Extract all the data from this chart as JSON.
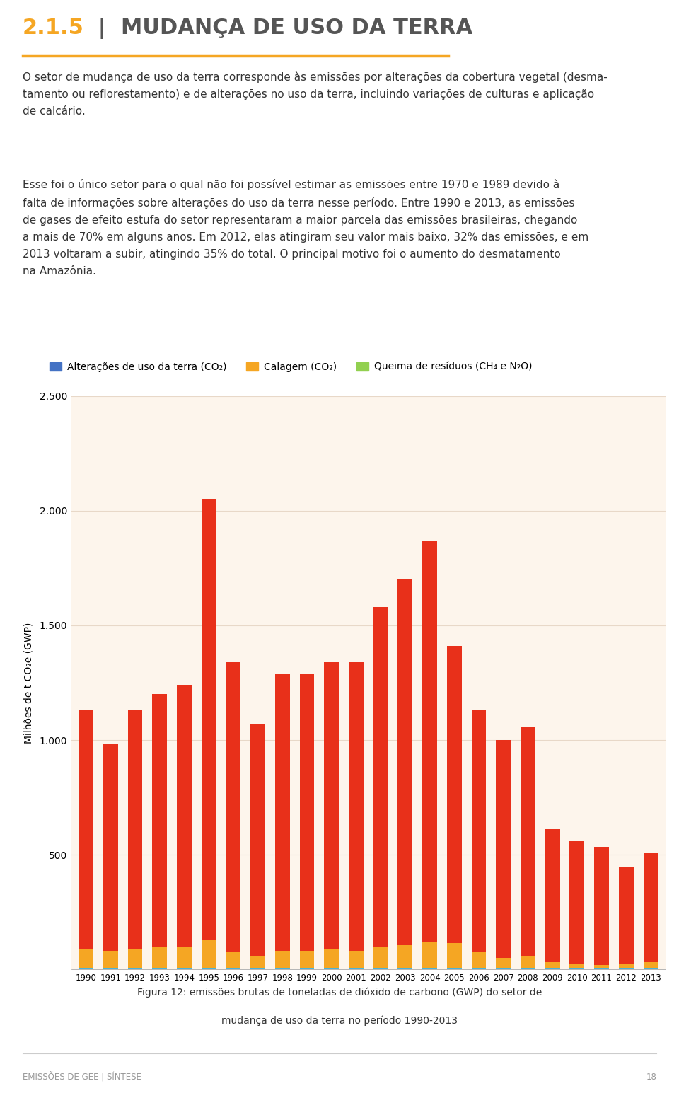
{
  "years": [
    1990,
    1991,
    1992,
    1993,
    1994,
    1995,
    1996,
    1997,
    1998,
    1999,
    2000,
    2001,
    2002,
    2003,
    2004,
    2005,
    2006,
    2007,
    2008,
    2009,
    2010,
    2011,
    2012,
    2013
  ],
  "land_use": [
    1130,
    980,
    1130,
    1200,
    1240,
    2050,
    1340,
    1070,
    1290,
    1290,
    1340,
    1340,
    1580,
    1700,
    1870,
    1410,
    1130,
    1000,
    1060,
    610,
    560,
    535,
    445,
    510
  ],
  "calagem": [
    85,
    80,
    90,
    95,
    100,
    130,
    75,
    60,
    80,
    80,
    90,
    80,
    95,
    105,
    120,
    115,
    75,
    50,
    60,
    30,
    25,
    20,
    25,
    30
  ],
  "queima": [
    5,
    5,
    5,
    5,
    5,
    5,
    5,
    5,
    5,
    5,
    5,
    5,
    5,
    5,
    5,
    5,
    5,
    5,
    5,
    5,
    5,
    5,
    5,
    5
  ],
  "land_use_color": "#e8301a",
  "calagem_color": "#f5a623",
  "queima_color": "#4ab3d8",
  "chart_bg_color": "#fdf5ec",
  "grid_color": "#e8d8c8",
  "title_number": "2.1.5",
  "title_rest": " |  MUDANÇA DE USO DA TERRA",
  "title_color": "#f5a623",
  "title_rest_color": "#555555",
  "header_line_color": "#f5a623",
  "ylabel": "Milhões de t CO₂e (GWP)",
  "ylim": [
    0,
    2500
  ],
  "yticks": [
    0,
    500,
    1000,
    1500,
    2000,
    2500
  ],
  "legend_label_1": "Alterações de uso da terra (CO₂)",
  "legend_label_2": "Calagem (CO₂)",
  "legend_label_3": "Queima de resíduos (CH₄ e N₂O)",
  "legend_color_1": "#4472c4",
  "legend_color_2": "#f5a623",
  "legend_color_3": "#92d050",
  "stripe_color": "#f5a623",
  "caption_line1": "Figura 12: emissões brutas de toneladas de dióxido de carbono (GWP) do setor de",
  "caption_line2": "mudança de uso da terra no período 1990-2013",
  "footer_text": "EMISSÕES DE GEE | SÍNTESE",
  "page_number": "18",
  "body1_line1": "O setor de mudança de uso da terra corresponde às emissões por alterações da cobertura vegetal (desma-",
  "body1_line2": "tamento ou reflorestamento) e de alterações no uso da terra, incluindo variações de culturas e aplicação",
  "body1_line3": "de calcário.",
  "body2_line1": "Esse foi o único setor para o qual não foi possível estimar as emissões entre 1970 e 1989 devido à",
  "body2_line2": "falta de informações sobre alterações do uso da terra nesse período. Entre 1990 e 2013, as emissões",
  "body2_line3": "de gases de efeito estufa do setor representaram a maior parcela das emissões brasileiras, chegando",
  "body2_line4": "a mais de 70% em alguns anos. Em 2012, elas atingiram seu valor mais baixo, 32% das emissões, e em",
  "body2_line5": "2013 voltaram a subir, atingindo 35% do total. O principal motivo foi o aumento do desmatamento",
  "body2_line6": "na Amazônia."
}
